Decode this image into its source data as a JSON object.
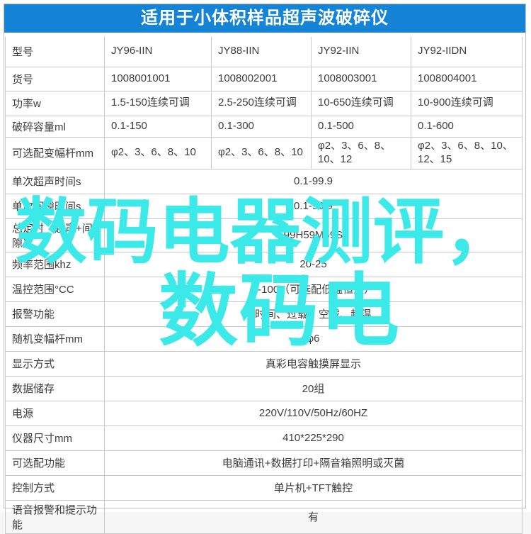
{
  "title": "适用于小体积样品超声波破碎仪",
  "colors": {
    "header_bg": "#1583d6",
    "header_text": "#ffffff",
    "border": "#c9c9c9",
    "body_text": "#3d3d3d",
    "watermark": "#3ce9e9"
  },
  "watermark": {
    "line1": "数码电器测评，",
    "line2": "数码电"
  },
  "table": {
    "rows": [
      {
        "label": "型号",
        "cells": [
          "JY96-IIN",
          "JY88-IIN",
          "JY92-IIN",
          "JY92-IIDN"
        ]
      },
      {
        "label": "货号",
        "cells": [
          "1008001001",
          "1008002001",
          "1008003001",
          "1008004001"
        ]
      },
      {
        "label": "功率w",
        "cells": [
          "1.5-150连续可调",
          "2.5-250连续可调",
          "10-650连续可调",
          "10-900连续可调"
        ]
      },
      {
        "label": "破碎容量ml",
        "cells": [
          "0.1-150",
          "0.1-300",
          "0.1-500",
          "0.1-600"
        ]
      },
      {
        "label": "可选配变幅杆mm",
        "cells": [
          "φ2、3、6、8、10",
          "φ2、3、6、8、10",
          "φ2、3、6、8、10、12",
          "φ2、3、6、8、10、12、15"
        ]
      },
      {
        "label": "单次超声时间s",
        "merged": "0.1-99.9"
      },
      {
        "label": "单次间隙时间s",
        "merged": "0.1-99.9"
      },
      {
        "label": "总定时（超声+间隙）",
        "merged": "99H59M59S"
      },
      {
        "label": "频率范围khz",
        "merged": "20-25"
      },
      {
        "label": "温控范围°CC",
        "merged": "0-100（可选配低温恒温）"
      },
      {
        "label": "报警功能",
        "merged": "时间、过载、空载、超温"
      },
      {
        "label": "随机变幅杆mm",
        "merged": "φ6"
      },
      {
        "label": "显示方式",
        "merged": "真彩电容触摸屏显示"
      },
      {
        "label": "数据储存",
        "merged": "20组"
      },
      {
        "label": "电源",
        "merged": "220V/110V/50Hz/60HZ"
      },
      {
        "label": "仪器尺寸mm",
        "merged": "410*225*290"
      },
      {
        "label": "可选配功能",
        "merged": "电脑通讯+数据打印+隔音箱照明或灭菌"
      },
      {
        "label": "控制方式",
        "merged": "单片机+TFT触控"
      },
      {
        "label": "语音报警和提示功能",
        "merged": "有"
      }
    ]
  }
}
